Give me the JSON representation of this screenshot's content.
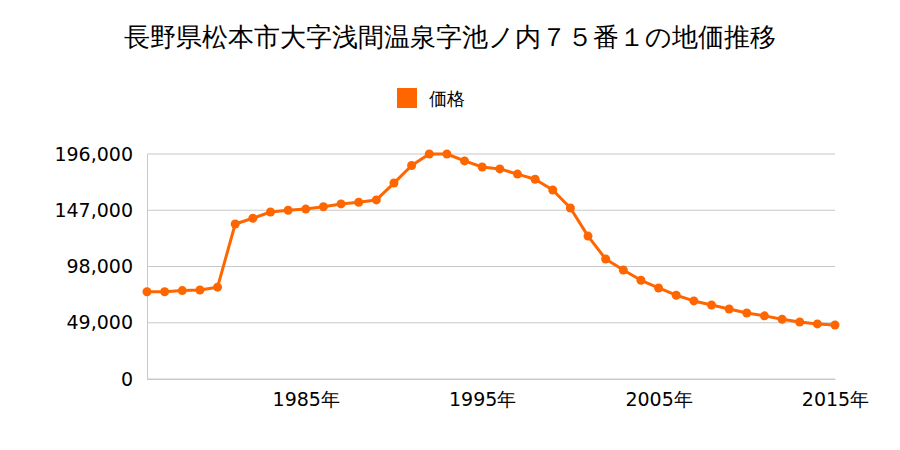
{
  "chart_data": {
    "type": "line",
    "title": "長野県松本市大字浅間温泉字池ノ内７５番１の地価推移",
    "x": [
      1976,
      1977,
      1978,
      1979,
      1980,
      1981,
      1982,
      1983,
      1984,
      1985,
      1986,
      1987,
      1988,
      1989,
      1990,
      1991,
      1992,
      1993,
      1994,
      1995,
      1996,
      1997,
      1998,
      1999,
      2000,
      2001,
      2002,
      2003,
      2004,
      2005,
      2006,
      2007,
      2008,
      2009,
      2010,
      2011,
      2012,
      2013,
      2014,
      2015
    ],
    "series": [
      {
        "name": "価格",
        "color": "#ff6600",
        "marker": "circle",
        "values": [
          76000,
          76000,
          77000,
          77500,
          80000,
          135000,
          140000,
          145500,
          147000,
          148000,
          150000,
          152500,
          154000,
          156000,
          170700,
          186000,
          196000,
          196000,
          190000,
          184700,
          183000,
          178500,
          174000,
          164600,
          149000,
          124500,
          104500,
          95000,
          86000,
          79300,
          73000,
          68000,
          64500,
          61000,
          57500,
          55000,
          52000,
          49700,
          48000,
          47000
        ]
      }
    ],
    "xlim": [
      1976,
      2015
    ],
    "xticks": [
      {
        "value": 1985,
        "label": "1985年"
      },
      {
        "value": 1995,
        "label": "1995年"
      },
      {
        "value": 2005,
        "label": "2005年"
      },
      {
        "value": 2015,
        "label": "2015年"
      }
    ],
    "ylim": [
      0,
      196000
    ],
    "yticks": [
      0,
      {
        "value": 49000,
        "label": "49,000"
      },
      {
        "value": 98000,
        "label": "98,000"
      },
      {
        "value": 147000,
        "label": "147,000"
      },
      {
        "value": 196000,
        "label": "196,000"
      }
    ],
    "grid": true,
    "legend": "top"
  }
}
